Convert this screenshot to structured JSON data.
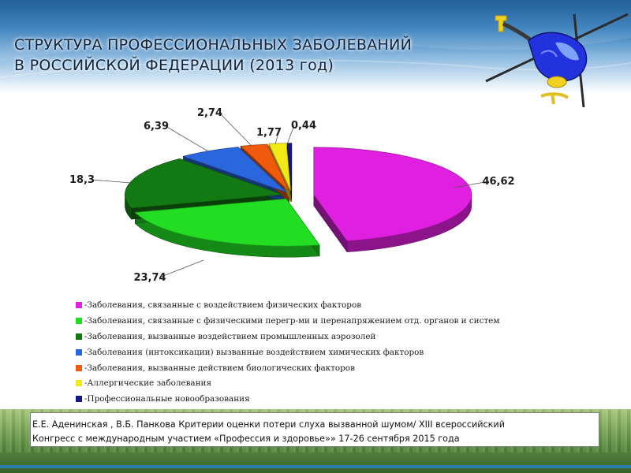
{
  "slide": {
    "title_line1": "СТРУКТУРА ПРОФЕССИОНАЛЬНЫХ ЗАБОЛЕВАНИЙ",
    "title_line2": "В РОССИЙСКОЙ ФЕДЕРАЦИИ (2013 год)",
    "citation_line1": "Е.Е. Аденинская , В.Б. Панкова Критерии оценки потери слуха вызванной шумом/ XIII всероссийский",
    "citation_line2": "Конгресс с международным участием «Профессия и здоровье»» 17-26 сентября 2015 года"
  },
  "chart_data": {
    "type": "pie",
    "title": "СТРУКТУРА ПРОФЕССИОНАЛЬНЫХ ЗАБОЛЕВАНИЙ В РОССИЙСКОЙ ФЕДЕРАЦИИ (2013 год)",
    "legend_position": "bottom",
    "exploded": true,
    "three_d": true,
    "slices": [
      {
        "label": "-Заболевания, связанные с воздействием физических факторов",
        "value": 46.62,
        "value_label": "46,62",
        "color": "#e020e0"
      },
      {
        "label": "-Заболевания, связанные с физическими перегр-ми и перенапряжением отд. органов и систем",
        "value": 23.74,
        "value_label": "23,74",
        "color": "#22dd22"
      },
      {
        "label": "-Заболевания, вызванные воздействием промышленных аэрозолей",
        "value": 18.3,
        "value_label": "18,3",
        "color": "#137a13"
      },
      {
        "label": "-Заболевания (интоксикации) вызванные воздействием химических факторов",
        "value": 6.39,
        "value_label": "6,39",
        "color": "#2a66dd"
      },
      {
        "label": "-Заболевания, вызванные действием биологических факторов",
        "value": 2.74,
        "value_label": "2,74",
        "color": "#ef5a0c"
      },
      {
        "label": "-Аллергические заболевания",
        "value": 1.77,
        "value_label": "1,77",
        "color": "#f2ea16"
      },
      {
        "label": "-Профессиональные новообразования",
        "value": 0.44,
        "value_label": "0,44",
        "color": "#16168a"
      }
    ]
  }
}
